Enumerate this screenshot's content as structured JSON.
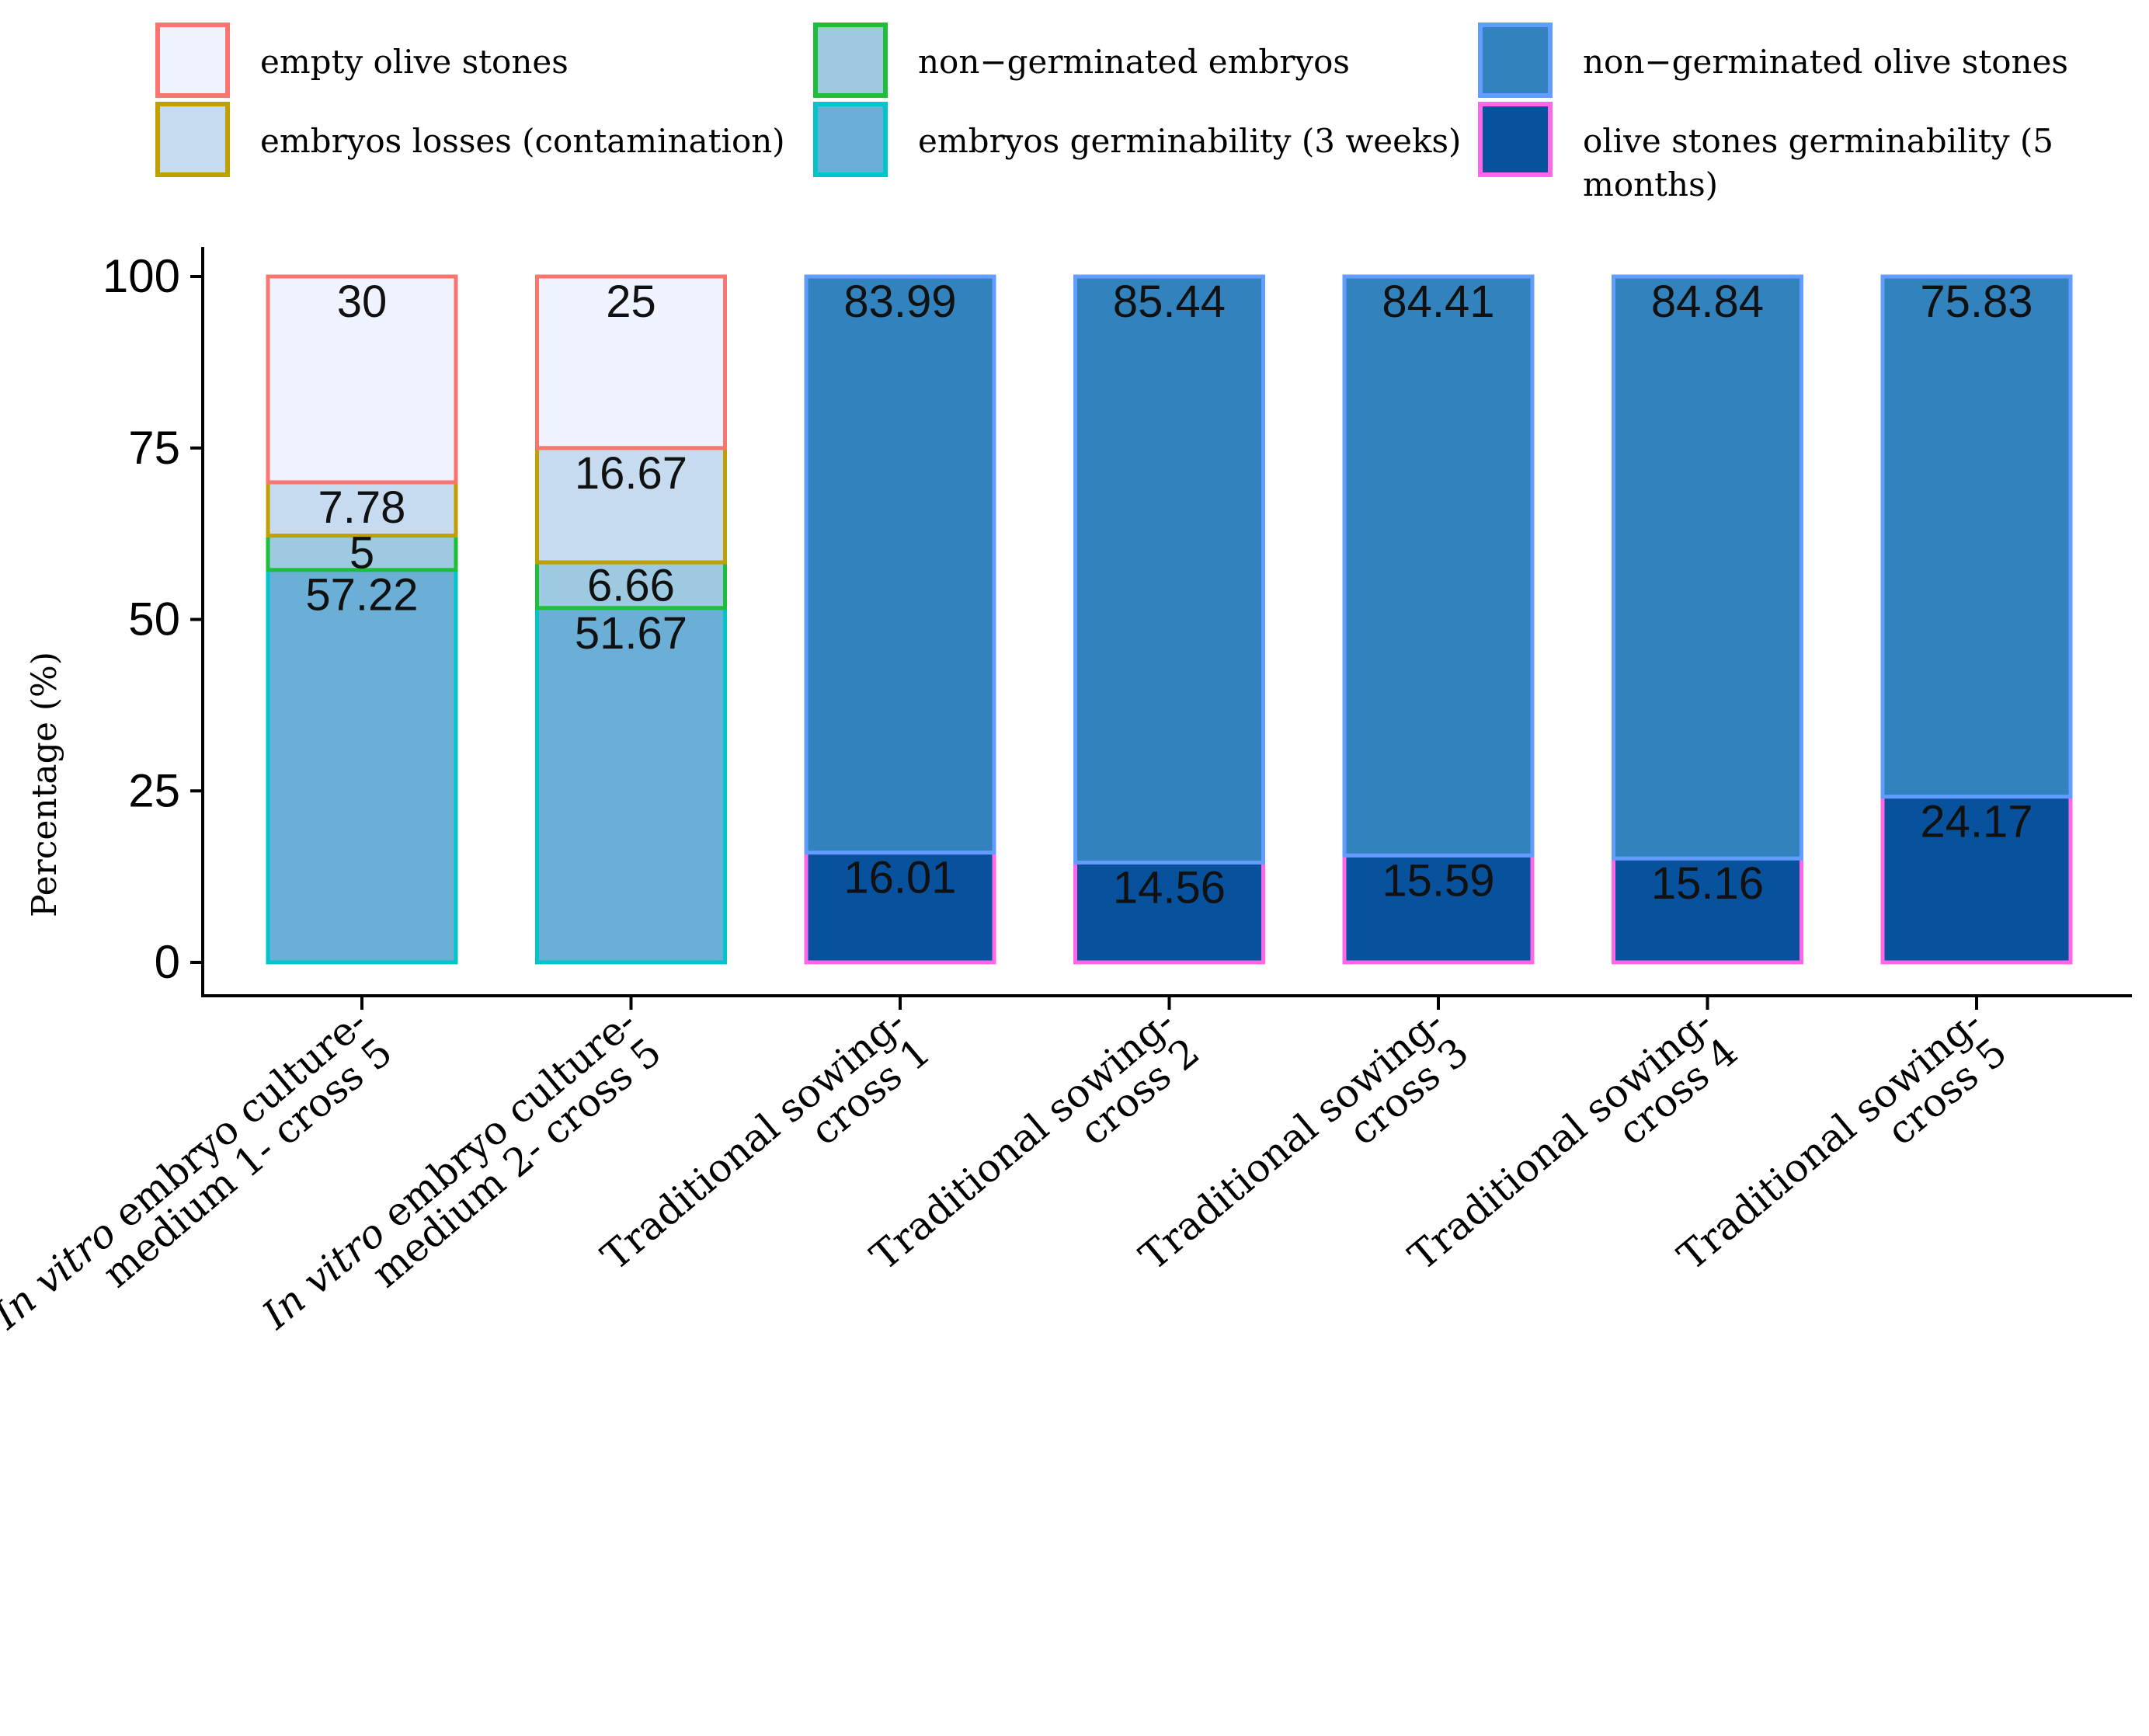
{
  "chart_data": {
    "type": "bar",
    "stacked": true,
    "title": "",
    "xlabel": "",
    "ylabel": "Percentage (%)",
    "ylim": [
      0,
      100
    ],
    "yticks": [
      "0",
      "25",
      "50",
      "75",
      "100"
    ],
    "legend_position": "top",
    "categories": [
      {
        "italic": "In vitro",
        "rest": " embryo culture-",
        "line2": "medium 1- cross 5"
      },
      {
        "italic": "In vitro",
        "rest": " embryo culture-",
        "line2": "medium 2- cross 5"
      },
      {
        "italic": "",
        "rest": "Traditional sowing-",
        "line2": "cross 1"
      },
      {
        "italic": "",
        "rest": "Traditional sowing-",
        "line2": "cross 2"
      },
      {
        "italic": "",
        "rest": "Traditional sowing-",
        "line2": "cross 3"
      },
      {
        "italic": "",
        "rest": "Traditional sowing-",
        "line2": "cross 4"
      },
      {
        "italic": "",
        "rest": "Traditional sowing-",
        "line2": "cross 5"
      }
    ],
    "series": [
      {
        "name": "embryos germinability (3 weeks)",
        "fill": "#6BAED6",
        "stroke": "#00C5CD",
        "values": [
          57.22,
          51.67,
          0,
          0,
          0,
          0,
          0
        ],
        "labels": [
          "57.22",
          "51.67",
          "",
          "",
          "",
          "",
          ""
        ]
      },
      {
        "name": "non−germinated embryos",
        "fill": "#9ECAE1",
        "stroke": "#1DBF3A",
        "values": [
          5,
          6.66,
          0,
          0,
          0,
          0,
          0
        ],
        "labels": [
          "5",
          "6.66",
          "",
          "",
          "",
          "",
          ""
        ]
      },
      {
        "name": "embryos losses (contamination)",
        "fill": "#C6DBEF",
        "stroke": "#C0A000",
        "values": [
          7.78,
          16.67,
          0,
          0,
          0,
          0,
          0
        ],
        "labels": [
          "7.78",
          "16.67",
          "",
          "",
          "",
          "",
          ""
        ]
      },
      {
        "name": "empty olive stones",
        "fill": "#EFF3FF",
        "stroke": "#F8766D",
        "values": [
          30,
          25,
          0,
          0,
          0,
          0,
          0
        ],
        "labels": [
          "30",
          "25",
          "",
          "",
          "",
          "",
          ""
        ]
      },
      {
        "name": "olive stones germinability (5 months)",
        "fill": "#08519C",
        "stroke": "#FF66E8",
        "values": [
          0,
          0,
          16.01,
          14.56,
          15.59,
          15.16,
          24.17
        ],
        "labels": [
          "",
          "",
          "16.01",
          "14.56",
          "15.59",
          "15.16",
          "24.17"
        ]
      },
      {
        "name": "non−germinated olive stones",
        "fill": "#3182BD",
        "stroke": "#619CFF",
        "values": [
          0,
          0,
          83.99,
          85.44,
          84.41,
          84.84,
          75.83
        ],
        "labels": [
          "",
          "",
          "83.99",
          "85.44",
          "84.41",
          "84.84",
          "75.83"
        ]
      }
    ],
    "legend": [
      {
        "label": "empty olive stones",
        "series": 3
      },
      {
        "label": "embryos losses (contamination)",
        "series": 2
      },
      {
        "label": "non−germinated embryos",
        "series": 1
      },
      {
        "label": "embryos germinability (3 weeks)",
        "series": 0
      },
      {
        "label": "non−germinated olive stones",
        "series": 5
      },
      {
        "label": "olive stones germinability (5",
        "label2": "months)",
        "series": 4
      }
    ]
  }
}
